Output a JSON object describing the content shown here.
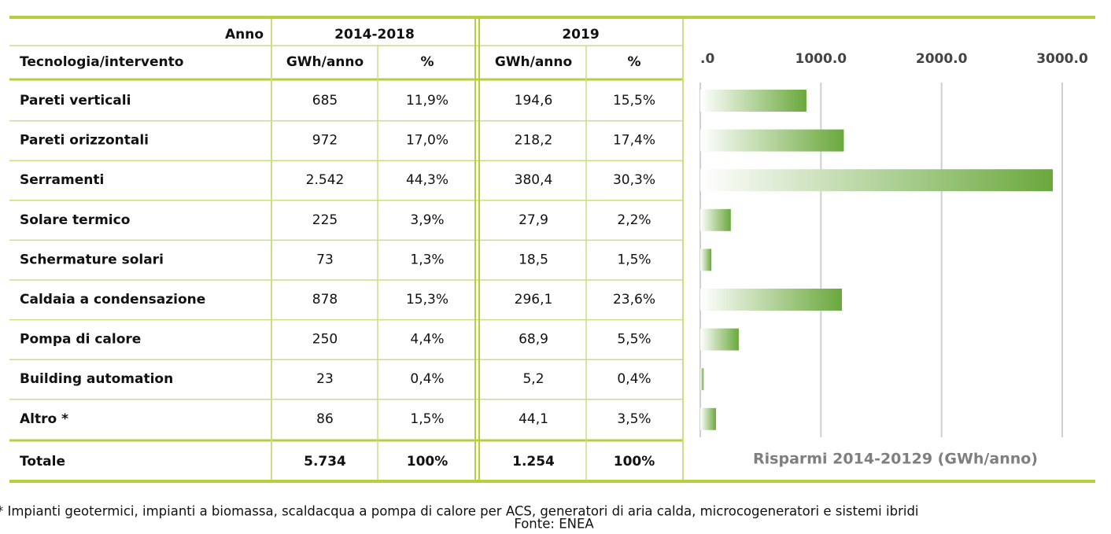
{
  "table": {
    "header": {
      "anno": "Anno",
      "period1": "2014-2018",
      "period2": "2019",
      "tech": "Tecnologia/intervento",
      "unit1": "GWh/anno",
      "pct1": "%",
      "unit2": "GWh/anno",
      "pct2": "%"
    },
    "rows": [
      [
        "Pareti verticali",
        "685",
        "11,9%",
        "194,6",
        "15,5%"
      ],
      [
        "Pareti orizzontali",
        "972",
        "17,0%",
        "218,2",
        "17,4%"
      ],
      [
        "Serramenti",
        "2.542",
        "44,3%",
        "380,4",
        "30,3%"
      ],
      [
        "Solare termico",
        "225",
        "3,9%",
        "27,9",
        "2,2%"
      ],
      [
        "Schermature solari",
        "73",
        "1,3%",
        "18,5",
        "1,5%"
      ],
      [
        "Caldaia a condensazione",
        "878",
        "15,3%",
        "296,1",
        "23,6%"
      ],
      [
        "Pompa di calore",
        "250",
        "4,4%",
        "68,9",
        "5,5%"
      ],
      [
        "Building automation",
        "23",
        "0,4%",
        "5,2",
        "0,4%"
      ],
      [
        "Altro *",
        "86",
        "1,5%",
        "44,1",
        "3,5%"
      ]
    ],
    "total": [
      "Totale",
      "5.734",
      "100%",
      "1.254",
      "100%"
    ]
  },
  "chart_data": {
    "type": "bar",
    "orientation": "horizontal",
    "caption": "Risparmi 2014-20129 (GWh/anno)",
    "values": [
      880,
      1190,
      2922,
      253,
      92,
      1174,
      319,
      28,
      130
    ],
    "color": "#6aa83c",
    "xlim": [
      0,
      3000
    ],
    "xticks": [
      {
        "value": 0,
        "label": ".0"
      },
      {
        "value": 1000,
        "label": "1000.0"
      },
      {
        "value": 2000,
        "label": "2000.0"
      },
      {
        "value": 3000,
        "label": "3000.0"
      }
    ],
    "grid": true
  },
  "footnote": "* Impianti geotermici, impianti a biomassa, scaldacqua a pompa di calore per ACS, generatori di aria calda, microcogeneratori e sistemi ibridi",
  "source": "Fonte: ENEA"
}
